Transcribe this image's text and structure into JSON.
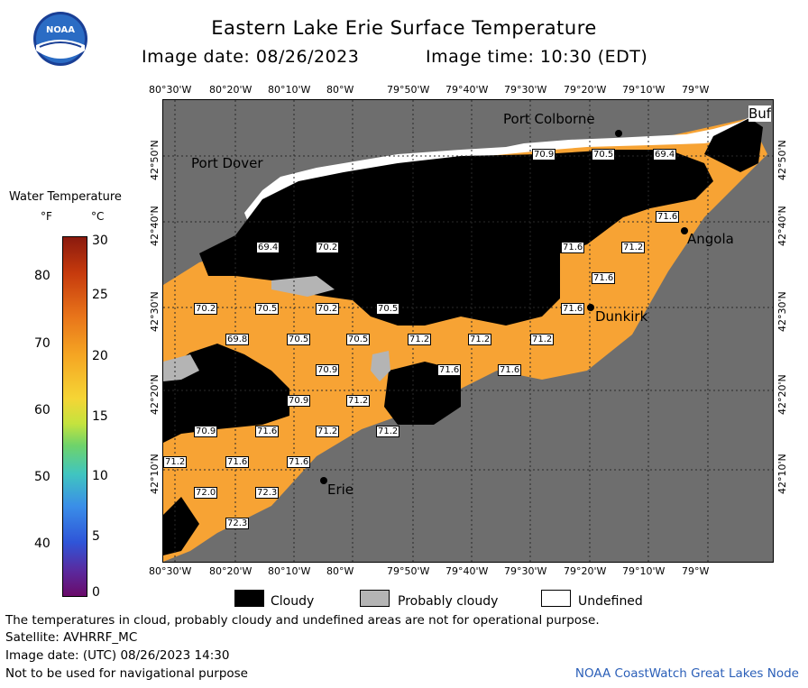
{
  "header": {
    "title": "Eastern Lake Erie Surface Temperature",
    "image_date": "Image date: 08/26/2023",
    "image_time": "Image time: 10:30 (EDT)"
  },
  "logo": {
    "text": "NOAA"
  },
  "legend": {
    "title": "Water Temperature",
    "unit_f": "°F",
    "unit_c": "°C",
    "fahrenheit_ticks": [
      "80",
      "70",
      "60",
      "50",
      "40"
    ],
    "celsius_ticks": [
      "30",
      "25",
      "20",
      "15",
      "10",
      "5",
      "0"
    ]
  },
  "map": {
    "lon_ticks": [
      "80°30'W",
      "80°20'W",
      "80°10'W",
      "80°W",
      "79°50'W",
      "79°40'W",
      "79°30'W",
      "79°20'W",
      "79°10'W",
      "79°W"
    ],
    "lat_ticks": [
      "42°50'N",
      "42°40'N",
      "42°30'N",
      "42°20'N",
      "42°10'N"
    ],
    "places": {
      "port_colborne": "Port Colborne",
      "buffalo": "Buf",
      "port_dover": "Port Dover",
      "angola": "Angola",
      "dunkirk": "Dunkirk",
      "erie": "Erie"
    },
    "temps": [
      "70.9",
      "70.5",
      "69.4",
      "71.6",
      "69.4",
      "70.2",
      "71.6",
      "71.2",
      "71.6",
      "70.2",
      "70.5",
      "70.2",
      "70.5",
      "71.6",
      "69.8",
      "70.5",
      "70.5",
      "71.2",
      "71.2",
      "71.2",
      "71.6",
      "71.6",
      "70.9",
      "70.9",
      "71.2",
      "70.9",
      "71.6",
      "71.2",
      "71.2",
      "71.2",
      "71.6",
      "71.6",
      "72.0",
      "72.3",
      "72.3"
    ],
    "colors": {
      "water": "#f7a334",
      "cloud": "#000000",
      "probably_cloudy": "#b4b4b4",
      "undefined": "#ffffff",
      "land": "#6e6e6e"
    }
  },
  "key": {
    "cloudy": "Cloudy",
    "probably_cloudy": "Probably cloudy",
    "undefined": "Undefined"
  },
  "footer": {
    "disclaimer": "The temperatures in cloud, probably cloudy and undefined areas are not for operational purpose.",
    "satellite": "Satellite: AVHRRF_MC",
    "utc_date": "Image date: (UTC) 08/26/2023  14:30",
    "nav": "Not to be used for navigational purpose",
    "credit": "NOAA CoastWatch Great Lakes Node"
  }
}
